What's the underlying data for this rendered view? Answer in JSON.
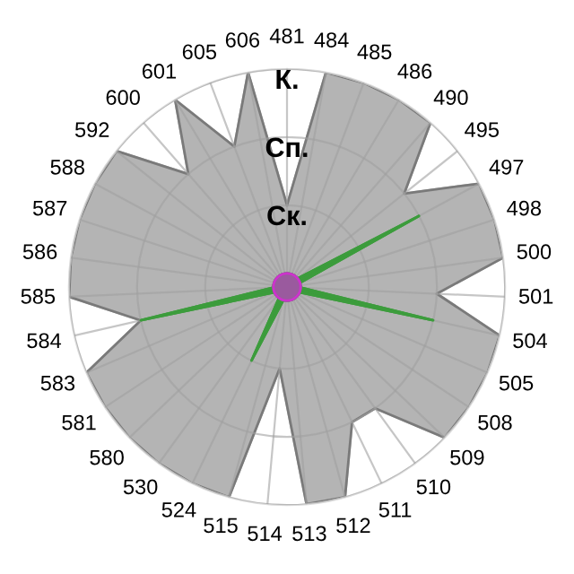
{
  "chart_data": {
    "type": "radar",
    "categories": [
      "481",
      "484",
      "485",
      "486",
      "490",
      "495",
      "497",
      "498",
      "500",
      "501",
      "504",
      "505",
      "508",
      "509",
      "510",
      "511",
      "512",
      "513",
      "514",
      "515",
      "524",
      "530",
      "580",
      "581",
      "583",
      "584",
      "585",
      "586",
      "587",
      "588",
      "592",
      "600",
      "601",
      "605",
      "606"
    ],
    "series": [
      {
        "color": "#b4b4b4",
        "values": [
          1,
          3,
          3,
          3,
          3,
          2,
          3,
          3,
          3,
          2,
          3,
          3,
          3,
          3,
          2,
          2,
          3,
          3,
          1,
          3,
          3,
          3,
          3,
          3,
          3,
          2,
          3,
          3,
          3,
          3,
          3,
          2,
          3,
          2,
          3
        ]
      },
      {
        "color": "#3c9c3c",
        "values": [
          0,
          0,
          0,
          0,
          0,
          0,
          2,
          0,
          0,
          0,
          2,
          0,
          0,
          0,
          0,
          0,
          0,
          0,
          0,
          0,
          1,
          0,
          0,
          0,
          0,
          2,
          0,
          0,
          0,
          0,
          0,
          0,
          0,
          0,
          0
        ]
      },
      {
        "color": "#9a5a9e",
        "values": [
          0,
          0,
          0,
          0,
          0,
          0,
          0,
          0,
          0,
          0,
          0,
          0,
          0,
          0,
          0,
          0,
          0,
          0,
          0,
          0,
          0,
          0,
          0,
          0,
          0,
          0,
          0,
          0,
          0,
          0,
          0,
          0,
          0,
          0,
          0
        ]
      }
    ],
    "ylim": [
      -0.2,
      3
    ],
    "yticks": [
      {
        "value": 1,
        "label": "Ск."
      },
      {
        "value": 2,
        "label": "Сп."
      },
      {
        "value": 3,
        "label": "К."
      }
    ],
    "grid": true
  }
}
